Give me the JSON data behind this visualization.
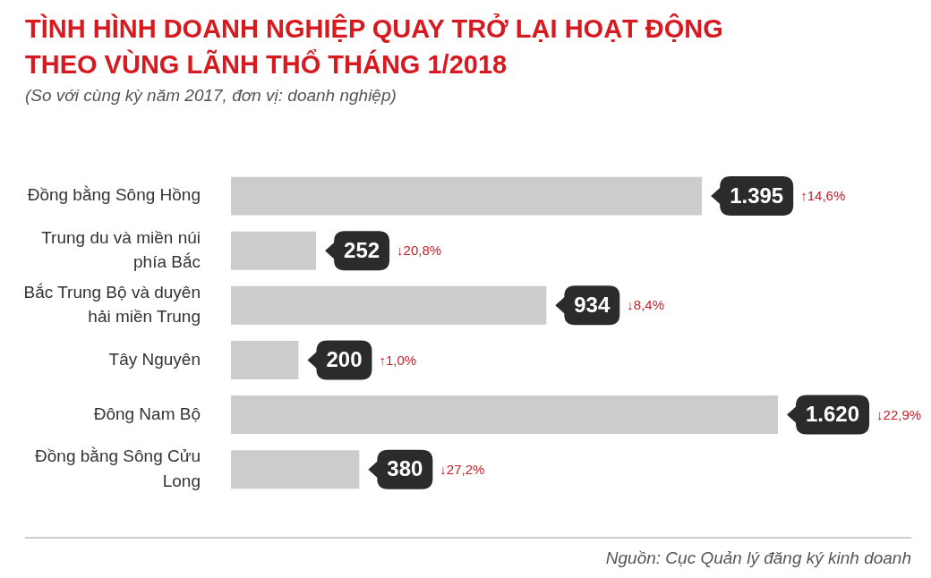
{
  "chart_data": {
    "type": "bar",
    "orientation": "horizontal",
    "title": "TÌNH HÌNH DOANH NGHIỆP QUAY TRỞ LẠI HOẠT ĐỘNG THEO VÙNG LÃNH THỔ THÁNG 1/2018",
    "subtitle": "(So với cùng kỳ năm 2017, đơn vị: doanh nghiệp)",
    "categories": [
      "Đồng bằng Sông Hồng",
      "Trung du và miền núi phía Bắc",
      "Bắc Trung Bộ và duyên hải miền Trung",
      "Tây Nguyên",
      "Đông Nam Bộ",
      "Đồng bằng Sông Cửu Long"
    ],
    "values": [
      1395,
      252,
      934,
      200,
      1620,
      380
    ],
    "value_labels": [
      "1.395",
      "252",
      "934",
      "200",
      "1.620",
      "380"
    ],
    "color": "#cccccc",
    "tick_labels": "y",
    "grid": false,
    "legend": false,
    "annotations": [
      "↑14,6%",
      "↓20,8%",
      "↓8,4%",
      "↑1,0%",
      "↓22,9%",
      "↓27,2%",
      "Nguồn: Cục Quản lý đăng ký kinh doanh"
    ]
  }
}
